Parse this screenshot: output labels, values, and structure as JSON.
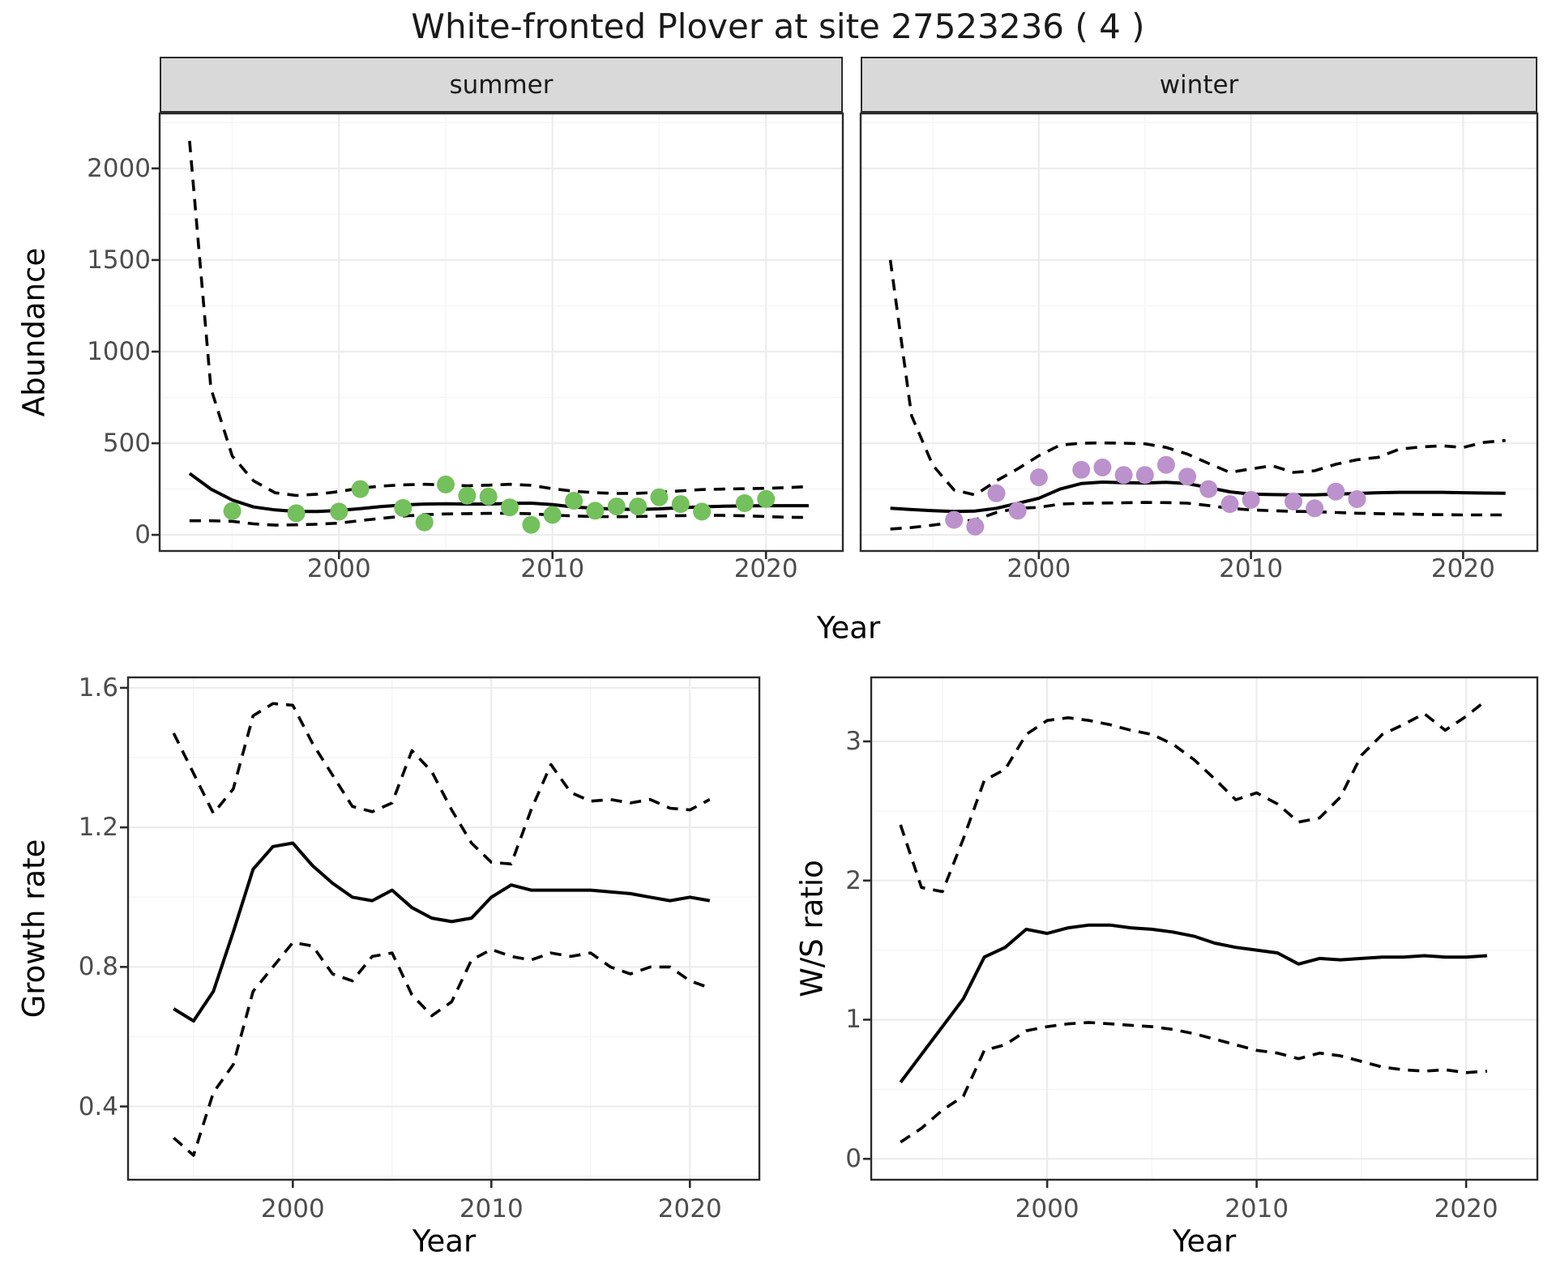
{
  "title": "White-fronted Plover at site 27523236 ( 4 )",
  "top_figure": {
    "ylabel": "Abundance",
    "xlabel": "Year",
    "facets": [
      {
        "label": "summer"
      },
      {
        "label": "winter"
      }
    ]
  },
  "bottom_left": {
    "ylabel": "Growth rate",
    "xlabel": "Year"
  },
  "bottom_right": {
    "ylabel": "W/S ratio",
    "xlabel": "Year"
  },
  "colors": {
    "summer_point": "#74C05C",
    "winter_point": "#BB92CC",
    "line": "#000000",
    "strip_bg": "#D9D9D9",
    "grid_major": "#ECECEC",
    "grid_minor": "#F6F6F6",
    "panel_border": "#2B2B2B",
    "tick_label": "#4D4D4D"
  },
  "chart_data": [
    {
      "id": "abundance-summer",
      "type": "line",
      "facet": "summer",
      "xlabel": "Year",
      "ylabel": "Abundance",
      "xlim": [
        1991.6,
        2023.6
      ],
      "ylim": [
        -88,
        2300
      ],
      "xticks": [
        2000,
        2010,
        2020
      ],
      "xticks_minor": [
        1995,
        2005,
        2015
      ],
      "yticks": [
        0,
        500,
        1000,
        1500,
        2000
      ],
      "yticks_minor": [
        250,
        750,
        1250,
        1750,
        2250
      ],
      "series": [
        {
          "name": "modelled_mean",
          "style": "solid",
          "x": [
            1993,
            1994,
            1995,
            1996,
            1997,
            1998,
            1999,
            2000,
            2001,
            2002,
            2003,
            2004,
            2005,
            2006,
            2007,
            2008,
            2009,
            2010,
            2011,
            2012,
            2013,
            2014,
            2015,
            2016,
            2017,
            2018,
            2019,
            2020,
            2021,
            2022
          ],
          "y": [
            335,
            250,
            190,
            152,
            136,
            128,
            128,
            133,
            143,
            155,
            163,
            168,
            170,
            168,
            168,
            172,
            173,
            165,
            152,
            145,
            140,
            139,
            142,
            148,
            153,
            156,
            158,
            159,
            159,
            159
          ]
        },
        {
          "name": "upper_95ci",
          "style": "dashed",
          "x": [
            1993,
            1994,
            1995,
            1996,
            1997,
            1998,
            1999,
            2000,
            2001,
            2002,
            2003,
            2004,
            2005,
            2006,
            2007,
            2008,
            2009,
            2010,
            2011,
            2012,
            2013,
            2014,
            2015,
            2016,
            2017,
            2018,
            2019,
            2020,
            2021,
            2022
          ],
          "y": [
            2150,
            800,
            430,
            295,
            230,
            215,
            222,
            236,
            255,
            266,
            273,
            276,
            272,
            268,
            271,
            276,
            270,
            252,
            238,
            230,
            226,
            227,
            232,
            240,
            247,
            250,
            252,
            254,
            258,
            264
          ]
        },
        {
          "name": "lower_95ci",
          "style": "dashed",
          "x": [
            1993,
            1994,
            1995,
            1996,
            1997,
            1998,
            1999,
            2000,
            2001,
            2002,
            2003,
            2004,
            2005,
            2006,
            2007,
            2008,
            2009,
            2010,
            2011,
            2012,
            2013,
            2014,
            2015,
            2016,
            2017,
            2018,
            2019,
            2020,
            2021,
            2022
          ],
          "y": [
            77,
            77,
            74,
            60,
            53,
            55,
            58,
            64,
            78,
            90,
            102,
            110,
            114,
            116,
            117,
            118,
            115,
            108,
            103,
            100,
            99,
            100,
            103,
            105,
            106,
            106,
            104,
            100,
            96,
            95
          ]
        }
      ],
      "points": {
        "name": "observed_counts_summer",
        "color": "#74C05C",
        "x": [
          1995,
          1998,
          2000,
          2001,
          2003,
          2004,
          2005,
          2006,
          2007,
          2008,
          2009,
          2010,
          2011,
          2012,
          2013,
          2014,
          2015,
          2016,
          2017,
          2019,
          2020
        ],
        "y": [
          130,
          118,
          127,
          250,
          147,
          68,
          275,
          214,
          209,
          150,
          55,
          109,
          186,
          132,
          155,
          155,
          205,
          168,
          127,
          173,
          196
        ]
      }
    },
    {
      "id": "abundance-winter",
      "type": "line",
      "facet": "winter",
      "xlabel": "Year",
      "ylabel": "Abundance",
      "xlim": [
        1991.6,
        2023.5
      ],
      "ylim": [
        -88,
        2300
      ],
      "xticks": [
        2000,
        2010,
        2020
      ],
      "xticks_minor": [
        1995,
        2005,
        2015
      ],
      "yticks": [
        0,
        500,
        1000,
        1500,
        2000
      ],
      "yticks_minor": [
        250,
        750,
        1250,
        1750,
        2250
      ],
      "series": [
        {
          "name": "modelled_mean",
          "style": "solid",
          "x": [
            1993,
            1994,
            1995,
            1996,
            1997,
            1998,
            1999,
            2000,
            2001,
            2002,
            2003,
            2004,
            2005,
            2006,
            2007,
            2008,
            2009,
            2010,
            2011,
            2012,
            2013,
            2014,
            2015,
            2016,
            2017,
            2018,
            2019,
            2020,
            2021,
            2022
          ],
          "y": [
            145,
            138,
            132,
            128,
            130,
            145,
            172,
            200,
            250,
            280,
            288,
            285,
            283,
            287,
            280,
            258,
            235,
            222,
            220,
            218,
            218,
            222,
            226,
            230,
            232,
            232,
            232,
            230,
            228,
            227
          ]
        },
        {
          "name": "upper_95ci",
          "style": "dashed",
          "x": [
            1993,
            1994,
            1995,
            1996,
            1997,
            1998,
            1999,
            2000,
            2001,
            2002,
            2003,
            2004,
            2005,
            2006,
            2007,
            2008,
            2009,
            2010,
            2011,
            2012,
            2013,
            2014,
            2015,
            2016,
            2017,
            2018,
            2019,
            2020,
            2021,
            2022
          ],
          "y": [
            1500,
            650,
            380,
            245,
            218,
            295,
            360,
            432,
            490,
            500,
            502,
            500,
            497,
            477,
            441,
            390,
            341,
            360,
            377,
            341,
            350,
            385,
            410,
            423,
            468,
            480,
            486,
            477,
            505,
            515
          ]
        },
        {
          "name": "lower_95ci",
          "style": "dashed",
          "x": [
            1993,
            1994,
            1995,
            1996,
            1997,
            1998,
            1999,
            2000,
            2001,
            2002,
            2003,
            2004,
            2005,
            2006,
            2007,
            2008,
            2009,
            2010,
            2011,
            2012,
            2013,
            2014,
            2015,
            2016,
            2017,
            2018,
            2019,
            2020,
            2021,
            2022
          ],
          "y": [
            32,
            40,
            53,
            68,
            82,
            122,
            145,
            150,
            168,
            172,
            174,
            175,
            177,
            176,
            173,
            160,
            145,
            136,
            132,
            128,
            127,
            122,
            118,
            116,
            114,
            112,
            110,
            109,
            109,
            109
          ]
        }
      ],
      "points": {
        "name": "observed_counts_winter",
        "color": "#BB92CC",
        "x": [
          1996,
          1997,
          1998,
          1999,
          2000,
          2002,
          2003,
          2004,
          2005,
          2006,
          2007,
          2008,
          2009,
          2010,
          2012,
          2013,
          2014,
          2015
        ],
        "y": [
          82,
          45,
          227,
          132,
          314,
          355,
          368,
          327,
          327,
          382,
          318,
          250,
          168,
          191,
          182,
          145,
          236,
          195
        ]
      }
    },
    {
      "id": "growth-rate",
      "type": "line",
      "xlabel": "Year",
      "ylabel": "Growth rate",
      "xlim": [
        1991.7,
        2023.5
      ],
      "ylim": [
        0.19,
        1.63
      ],
      "xticks": [
        2000,
        2010,
        2020
      ],
      "xticks_minor": [
        1995,
        2005,
        2015
      ],
      "yticks": [
        0.4,
        0.8,
        1.2,
        1.6
      ],
      "yticks_minor": [
        0.2,
        0.6,
        1.0,
        1.4
      ],
      "ytick_decimals": 1,
      "series": [
        {
          "name": "growth_rate_mean",
          "style": "solid",
          "x": [
            1994,
            1995,
            1996,
            1997,
            1998,
            1999,
            2000,
            2001,
            2002,
            2003,
            2004,
            2005,
            2006,
            2007,
            2008,
            2009,
            2010,
            2011,
            2012,
            2013,
            2014,
            2015,
            2016,
            2017,
            2018,
            2019,
            2020,
            2021
          ],
          "y": [
            0.68,
            0.645,
            0.73,
            0.9,
            1.08,
            1.145,
            1.155,
            1.09,
            1.04,
            1.0,
            0.99,
            1.02,
            0.97,
            0.94,
            0.93,
            0.94,
            1.0,
            1.035,
            1.02,
            1.02,
            1.02,
            1.02,
            1.015,
            1.01,
            1.0,
            0.99,
            1.0,
            0.99
          ]
        },
        {
          "name": "upper_95ci",
          "style": "dashed",
          "x": [
            1994,
            1995,
            1996,
            1997,
            1998,
            1999,
            2000,
            2001,
            2002,
            2003,
            2004,
            2005,
            2006,
            2007,
            2008,
            2009,
            2010,
            2011,
            2012,
            2013,
            2014,
            2015,
            2016,
            2017,
            2018,
            2019,
            2020,
            2021
          ],
          "y": [
            1.47,
            1.355,
            1.24,
            1.31,
            1.52,
            1.555,
            1.55,
            1.44,
            1.35,
            1.26,
            1.245,
            1.27,
            1.42,
            1.36,
            1.25,
            1.155,
            1.1,
            1.095,
            1.25,
            1.38,
            1.3,
            1.275,
            1.28,
            1.27,
            1.28,
            1.255,
            1.25,
            1.28
          ]
        },
        {
          "name": "lower_95ci",
          "style": "dashed",
          "x": [
            1994,
            1995,
            1996,
            1997,
            1998,
            1999,
            2000,
            2001,
            2002,
            2003,
            2004,
            2005,
            2006,
            2007,
            2008,
            2009,
            2010,
            2011,
            2012,
            2013,
            2014,
            2015,
            2016,
            2017,
            2018,
            2019,
            2020,
            2021
          ],
          "y": [
            0.31,
            0.26,
            0.44,
            0.52,
            0.73,
            0.8,
            0.87,
            0.86,
            0.78,
            0.76,
            0.83,
            0.84,
            0.72,
            0.66,
            0.7,
            0.82,
            0.85,
            0.83,
            0.82,
            0.84,
            0.83,
            0.84,
            0.8,
            0.78,
            0.8,
            0.8,
            0.76,
            0.74
          ]
        }
      ]
    },
    {
      "id": "ws-ratio",
      "type": "line",
      "xlabel": "Year",
      "ylabel": "W/S ratio",
      "xlim": [
        1991.6,
        2023.4
      ],
      "ylim": [
        -0.15,
        3.46
      ],
      "xticks": [
        2000,
        2010,
        2020
      ],
      "xticks_minor": [
        1995,
        2005,
        2015
      ],
      "yticks": [
        0,
        1,
        2,
        3
      ],
      "yticks_minor": [
        0.5,
        1.5,
        2.5
      ],
      "series": [
        {
          "name": "ws_ratio_mean",
          "style": "solid",
          "x": [
            1993,
            1994,
            1995,
            1996,
            1997,
            1998,
            1999,
            2000,
            2001,
            2002,
            2003,
            2004,
            2005,
            2006,
            2007,
            2008,
            2009,
            2010,
            2011,
            2012,
            2013,
            2014,
            2015,
            2016,
            2017,
            2018,
            2019,
            2020,
            2021
          ],
          "y": [
            0.55,
            0.75,
            0.95,
            1.15,
            1.45,
            1.52,
            1.65,
            1.62,
            1.66,
            1.68,
            1.68,
            1.66,
            1.65,
            1.63,
            1.6,
            1.55,
            1.52,
            1.5,
            1.48,
            1.4,
            1.44,
            1.43,
            1.44,
            1.45,
            1.45,
            1.46,
            1.45,
            1.45,
            1.46
          ]
        },
        {
          "name": "upper_95ci",
          "style": "dashed",
          "x": [
            1993,
            1994,
            1995,
            1996,
            1997,
            1998,
            1999,
            2000,
            2001,
            2002,
            2003,
            2004,
            2005,
            2006,
            2007,
            2008,
            2009,
            2010,
            2011,
            2012,
            2013,
            2014,
            2015,
            2016,
            2017,
            2018,
            2019,
            2020,
            2021
          ],
          "y": [
            2.4,
            1.95,
            1.92,
            2.3,
            2.72,
            2.8,
            3.05,
            3.15,
            3.17,
            3.15,
            3.12,
            3.08,
            3.05,
            2.98,
            2.87,
            2.73,
            2.58,
            2.63,
            2.55,
            2.42,
            2.45,
            2.6,
            2.9,
            3.05,
            3.12,
            3.2,
            3.08,
            3.18,
            3.3
          ]
        },
        {
          "name": "lower_95ci",
          "style": "dashed",
          "x": [
            1993,
            1994,
            1995,
            1996,
            1997,
            1998,
            1999,
            2000,
            2001,
            2002,
            2003,
            2004,
            2005,
            2006,
            2007,
            2008,
            2009,
            2010,
            2011,
            2012,
            2013,
            2014,
            2015,
            2016,
            2017,
            2018,
            2019,
            2020,
            2021
          ],
          "y": [
            0.12,
            0.22,
            0.35,
            0.45,
            0.78,
            0.82,
            0.92,
            0.95,
            0.97,
            0.98,
            0.97,
            0.96,
            0.95,
            0.93,
            0.9,
            0.86,
            0.82,
            0.78,
            0.76,
            0.72,
            0.76,
            0.74,
            0.7,
            0.66,
            0.64,
            0.63,
            0.64,
            0.62,
            0.63
          ]
        }
      ]
    }
  ]
}
